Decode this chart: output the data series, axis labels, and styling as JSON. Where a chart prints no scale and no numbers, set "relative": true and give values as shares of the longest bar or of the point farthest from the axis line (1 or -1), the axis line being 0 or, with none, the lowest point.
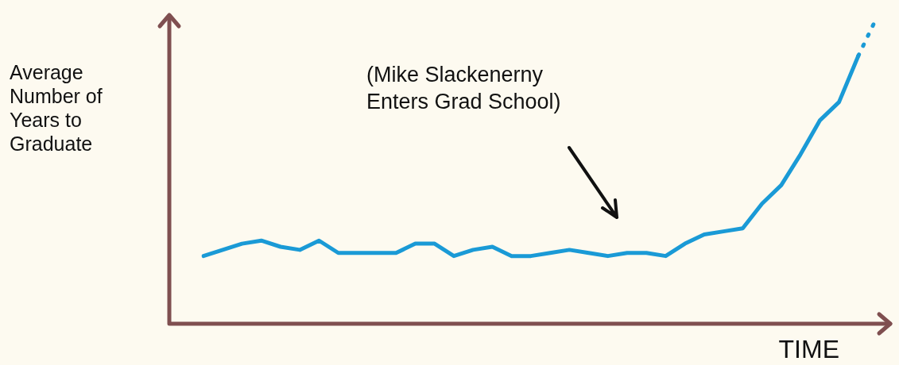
{
  "chart_data": {
    "type": "line",
    "relative": true,
    "xlabel": "TIME",
    "ylabel": "Average Number of Years to Graduate",
    "tick_labels": false,
    "legend": false,
    "marker": "none",
    "annotations": [
      "(Mike Slackenerny\nEnters Grad School)"
    ],
    "categories": [
      null,
      null,
      null,
      null,
      null,
      null,
      null,
      null,
      null,
      null,
      null,
      null,
      null,
      null,
      null,
      null,
      null,
      null,
      null,
      null,
      null,
      null,
      null,
      null,
      null,
      null,
      null,
      null,
      null,
      null,
      null,
      null,
      null,
      null,
      null,
      null
    ],
    "series": [
      {
        "color": "#1a9ad6",
        "line_style": "solid",
        "values": [
          0.22,
          0.24,
          0.26,
          0.27,
          0.25,
          0.24,
          0.27,
          0.23,
          0.23,
          0.23,
          0.23,
          0.26,
          0.26,
          0.22,
          0.24,
          0.25,
          0.22,
          0.22,
          0.23,
          0.24,
          0.23,
          0.22,
          0.23,
          0.23,
          0.22,
          0.26,
          0.29,
          0.3,
          0.31,
          0.39,
          0.45,
          0.55,
          0.66,
          0.72,
          0.87,
          null
        ]
      },
      {
        "color": "#1a9ad6",
        "line_style": "dotted",
        "values": [
          null,
          null,
          null,
          null,
          null,
          null,
          null,
          null,
          null,
          null,
          null,
          null,
          null,
          null,
          null,
          null,
          null,
          null,
          null,
          null,
          null,
          null,
          null,
          null,
          null,
          null,
          null,
          null,
          null,
          null,
          null,
          null,
          null,
          null,
          0.87,
          1
        ]
      }
    ]
  }
}
